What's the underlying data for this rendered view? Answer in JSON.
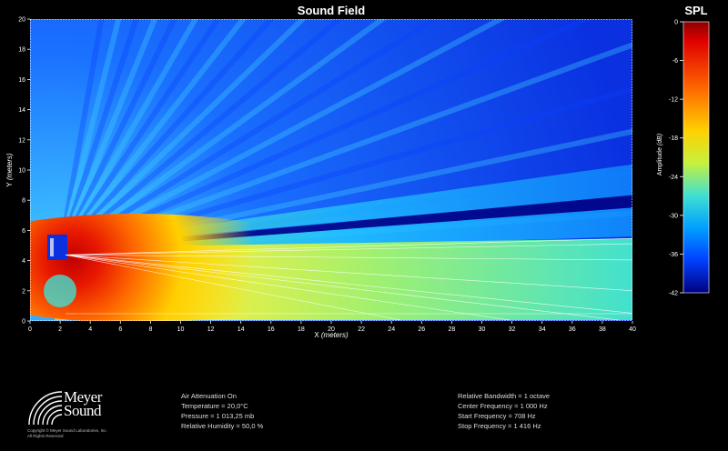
{
  "window": {
    "title": "Sound Field",
    "colorbar_title": "SPL"
  },
  "chart_data": {
    "type": "heatmap",
    "title": "Sound Field",
    "xlabel": "X",
    "xunit": "(meters)",
    "ylabel": "Y",
    "yunit": "(meters)",
    "xlim": [
      0,
      40
    ],
    "ylim": [
      0,
      20
    ],
    "x_ticks": [
      0,
      2,
      4,
      6,
      8,
      10,
      12,
      14,
      16,
      18,
      20,
      22,
      24,
      26,
      28,
      30,
      32,
      34,
      36,
      38,
      40
    ],
    "y_ticks": [
      0,
      2,
      4,
      6,
      8,
      10,
      12,
      14,
      16,
      18,
      20
    ],
    "colorbar": {
      "title": "SPL",
      "label": "Amplitude",
      "unit": "(dB)",
      "range": [
        -42,
        0
      ],
      "ticks": [
        0,
        -6,
        -12,
        -18,
        -24,
        -30,
        -36,
        -42
      ],
      "colors": [
        "#8b0000",
        "#e00000",
        "#ff6a00",
        "#ffd000",
        "#c8f03c",
        "#40e0d0",
        "#00a0ff",
        "#0040ff",
        "#00007f"
      ]
    },
    "source": {
      "x": 2,
      "y": 4.5,
      "peak_db": 0
    },
    "beam": {
      "center_direction_deg": 5,
      "peak_region": "X 2–10 m, Y 2–6 m"
    }
  },
  "info_left": [
    "Air Attenuation On",
    "Temperature = 20,0°C",
    "Pressure = 1 013,25  mb",
    "Relative Humidity = 50,0 %"
  ],
  "info_right": [
    "Relative Bandwidth = 1 octave",
    "Center Frequency = 1 000 Hz",
    "Start Frequency = 708 Hz",
    "Stop Frequency = 1 416 Hz"
  ],
  "logo": {
    "line1": "Meyer",
    "line2": "Sound",
    "copyright1": "Copyright © Meyer Sound Laboratories, Inc.",
    "copyright2": "All Rights Reserved"
  }
}
